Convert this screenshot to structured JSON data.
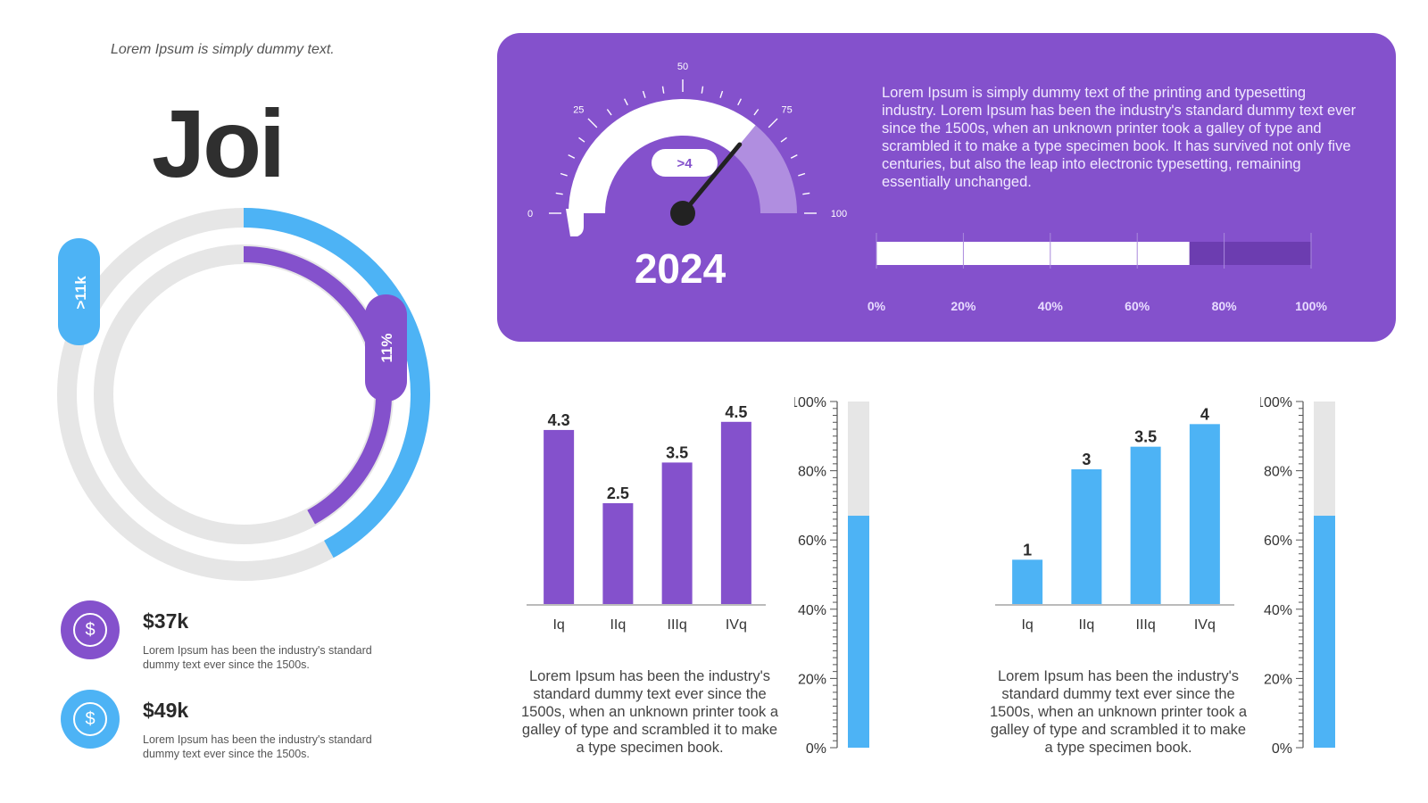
{
  "header": {
    "tagline": "Lorem Ipsum is simply dummy text.",
    "brand": "Joi"
  },
  "colors": {
    "purple": "#8451cc",
    "blue": "#4db3f5",
    "track": "#e6e6e6",
    "dark": "#2a2a2a"
  },
  "rings": {
    "outer": {
      "label": ">11k",
      "fraction": 0.42,
      "color": "#4db3f5"
    },
    "inner": {
      "label": "11%",
      "fraction": 0.42,
      "color": "#8451cc"
    }
  },
  "stats": [
    {
      "icon": "dollar-coin-icon",
      "amount": "$37k",
      "desc": "Lorem Ipsum has been the industry's standard dummy text ever since the 1500s.",
      "color": "#8451cc"
    },
    {
      "icon": "dollar-coin-icon",
      "amount": "$49k",
      "desc": "Lorem Ipsum has been the industry's standard dummy text ever since the 1500s.",
      "color": "#4db3f5"
    }
  ],
  "hero": {
    "year": "2024",
    "paragraph": "Lorem Ipsum is simply dummy text of the printing and typesetting industry. Lorem Ipsum has been the industry's standard dummy text ever since the 1500s, when an unknown printer took a galley of type and scrambled it to make a type specimen book. It has survived not only five centuries, but also the leap into electronic typesetting, remaining essentially unchanged."
  },
  "chart_data": [
    {
      "type": "gauge",
      "min": 0,
      "max": 100,
      "ticks": [
        "0",
        "25",
        "50",
        "75",
        "100"
      ],
      "value": 72,
      "badge": ">4"
    },
    {
      "type": "bar",
      "orientation": "horizontal-progress",
      "value": 0.72,
      "ticks": [
        "0%",
        "20%",
        "40%",
        "60%",
        "80%",
        "100%"
      ]
    },
    {
      "type": "bar",
      "categories": [
        "Iq",
        "IIq",
        "IIIq",
        "IVq"
      ],
      "values": [
        4.3,
        2.5,
        3.5,
        4.5
      ],
      "labels": [
        "4.3",
        "2.5",
        "3.5",
        "4.5"
      ],
      "ylim": [
        0,
        5
      ],
      "color": "#8451cc",
      "description": "Lorem Ipsum has been the industry's standard dummy text ever since the 1500s, when an unknown printer took a galley of type and scrambled it to make a type specimen book."
    },
    {
      "type": "bar",
      "orientation": "vertical-progress",
      "value": 0.67,
      "ticks": [
        "100%",
        "80%",
        "60%",
        "40%",
        "20%",
        "0%"
      ]
    },
    {
      "type": "bar",
      "categories": [
        "Iq",
        "IIq",
        "IIIq",
        "IVq"
      ],
      "values": [
        1,
        3,
        3.5,
        4
      ],
      "labels": [
        "1",
        "3",
        "3.5",
        "4"
      ],
      "ylim": [
        0,
        4.5
      ],
      "color": "#4db3f5",
      "description": "Lorem Ipsum has been the industry's standard dummy text ever since the 1500s, when an unknown printer took a galley of type and scrambled it to make a type specimen book."
    },
    {
      "type": "bar",
      "orientation": "vertical-progress",
      "value": 0.67,
      "ticks": [
        "100%",
        "80%",
        "60%",
        "40%",
        "20%",
        "0%"
      ]
    }
  ]
}
